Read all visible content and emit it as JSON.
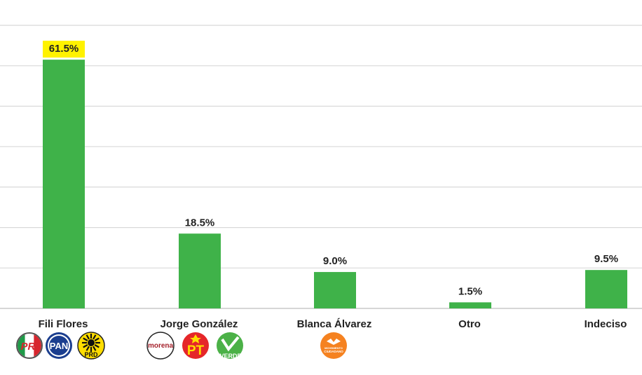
{
  "chart_data": {
    "type": "bar",
    "categories": [
      "Fili Flores",
      "Jorge González",
      "Blanca Álvarez",
      "Otro",
      "Indeciso"
    ],
    "values": [
      61.5,
      18.5,
      9.0,
      1.5,
      9.5
    ],
    "value_labels": [
      "61.5%",
      "18.5%",
      "9.0%",
      "1.5%",
      "9.5%"
    ],
    "highlight_index": 0,
    "ylim": [
      0,
      70
    ],
    "grid_step": 10,
    "grid": true,
    "colors": {
      "bar": "#3fb249",
      "highlight": "#fff200",
      "grid": "#d9d9d9"
    }
  },
  "party_logos": [
    [
      {
        "icon": "pri-logo-icon",
        "text": "PRI"
      },
      {
        "icon": "pan-logo-icon",
        "text": "PAN"
      },
      {
        "icon": "prd-logo-icon",
        "text": "PRD"
      }
    ],
    [
      {
        "icon": "morena-logo-icon",
        "text": "morena"
      },
      {
        "icon": "pt-logo-icon",
        "text": "PT"
      },
      {
        "icon": "verde-logo-icon",
        "text": "VERDE"
      }
    ],
    [
      {
        "icon": "movimiento-ciudadano-logo-icon",
        "text": "MOVIMIENTO CIUDADANO"
      }
    ]
  ]
}
